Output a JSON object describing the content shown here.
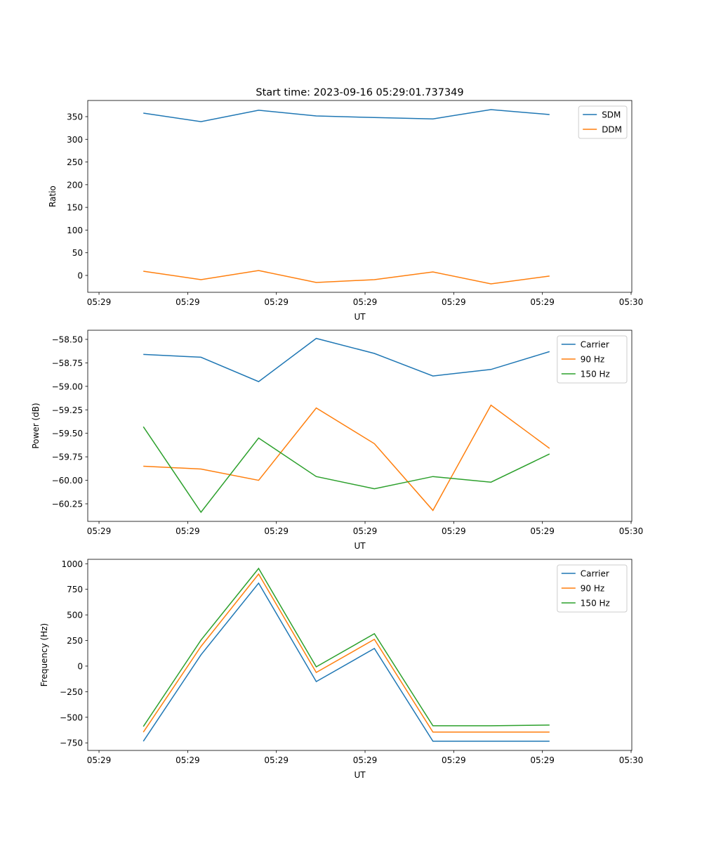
{
  "chart_data": [
    {
      "type": "line",
      "title": "Start time: 2023-09-16 05:29:01.737349",
      "xlabel": "UT",
      "ylabel": "Ratio",
      "x": [
        0.5,
        1.15,
        1.8,
        2.45,
        3.105,
        3.765,
        4.42,
        5.08
      ],
      "xlim": [
        -0.127,
        6.008
      ],
      "xticks": [
        0,
        1,
        2,
        3,
        4,
        5,
        6
      ],
      "xtick_labels": [
        "05:29",
        "05:29",
        "05:29",
        "05:29",
        "05:29",
        "05:29",
        "05:30"
      ],
      "ylim": [
        -37.2,
        385.6
      ],
      "yticks": [
        0,
        50,
        100,
        150,
        200,
        250,
        300,
        350
      ],
      "ytick_labels": [
        "0",
        "50",
        "100",
        "150",
        "200",
        "250",
        "300",
        "350"
      ],
      "legend": "upper-right",
      "series": [
        {
          "name": "SDM",
          "color": "#1f77b4",
          "values": [
            357.7,
            339,
            364,
            351.6,
            348,
            345,
            365.5,
            354.6
          ]
        },
        {
          "name": "DDM",
          "color": "#ff7f0e",
          "values": [
            9.3,
            -9.3,
            10.8,
            -15.5,
            -9.3,
            7.7,
            -18.6,
            -1.5
          ]
        }
      ]
    },
    {
      "type": "line",
      "xlabel": "UT",
      "ylabel": "Power (dB)",
      "x": [
        0.5,
        1.15,
        1.8,
        2.45,
        3.105,
        3.765,
        4.42,
        5.08
      ],
      "xlim": [
        -0.127,
        6.008
      ],
      "xticks": [
        0,
        1,
        2,
        3,
        4,
        5,
        6
      ],
      "xtick_labels": [
        "05:29",
        "05:29",
        "05:29",
        "05:29",
        "05:29",
        "05:29",
        "05:30"
      ],
      "ylim": [
        -60.437,
        -58.403
      ],
      "yticks": [
        -58.5,
        -58.75,
        -59.0,
        -59.25,
        -59.5,
        -59.75,
        -60.0,
        -60.25
      ],
      "ytick_labels": [
        "−58.50",
        "−58.75",
        "−59.00",
        "−59.25",
        "−59.50",
        "−59.75",
        "−60.00",
        "−60.25"
      ],
      "legend": "upper-right",
      "series": [
        {
          "name": "Carrier",
          "color": "#1f77b4",
          "values": [
            -58.66,
            -58.69,
            -58.95,
            -58.49,
            -58.65,
            -58.89,
            -58.82,
            -58.63
          ]
        },
        {
          "name": "90 Hz",
          "color": "#ff7f0e",
          "values": [
            -59.85,
            -59.88,
            -60.0,
            -59.23,
            -59.61,
            -60.32,
            -59.2,
            -59.66
          ]
        },
        {
          "name": "150 Hz",
          "color": "#2ca02c",
          "values": [
            -59.43,
            -60.34,
            -59.55,
            -59.96,
            -60.09,
            -59.96,
            -60.02,
            -59.72
          ]
        }
      ]
    },
    {
      "type": "line",
      "xlabel": "UT",
      "ylabel": "Frequency (Hz)",
      "x": [
        0.5,
        1.15,
        1.8,
        2.45,
        3.105,
        3.765,
        4.42,
        5.08
      ],
      "xlim": [
        -0.127,
        6.008
      ],
      "xticks": [
        0,
        1,
        2,
        3,
        4,
        5,
        6
      ],
      "xtick_labels": [
        "05:29",
        "05:29",
        "05:29",
        "05:29",
        "05:29",
        "05:29",
        "05:30"
      ],
      "ylim": [
        -824,
        1043
      ],
      "yticks": [
        -750,
        -500,
        -250,
        0,
        250,
        500,
        750,
        1000
      ],
      "ytick_labels": [
        "−750",
        "−500",
        "−250",
        "0",
        "250",
        "500",
        "750",
        "1000"
      ],
      "legend": "upper-right",
      "series": [
        {
          "name": "Carrier",
          "color": "#1f77b4",
          "values": [
            -734,
            110,
            810,
            -151,
            172,
            -734,
            -734,
            -734
          ]
        },
        {
          "name": "90 Hz",
          "color": "#ff7f0e",
          "values": [
            -645,
            192,
            899,
            -62,
            261,
            -645,
            -645,
            -645
          ]
        },
        {
          "name": "150 Hz",
          "color": "#2ca02c",
          "values": [
            -590,
            254,
            954,
            -7,
            316,
            -583,
            -583,
            -576
          ]
        }
      ]
    }
  ]
}
